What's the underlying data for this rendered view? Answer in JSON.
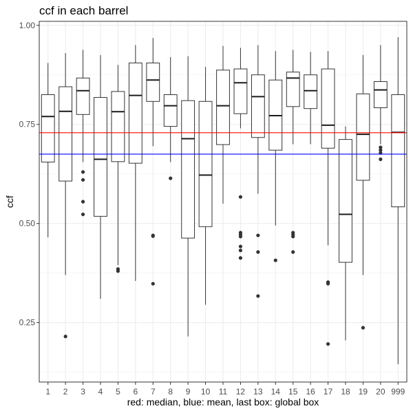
{
  "chart_data": {
    "type": "boxplot",
    "title": "ccf in each barrel",
    "xlabel": "red: median, blue: mean, last box: global box",
    "ylabel": "ccf",
    "ylim": [
      0.1,
      1.01
    ],
    "y_ticks": [
      0.25,
      0.5,
      0.75,
      1.0
    ],
    "y_tick_labels": [
      "0.25",
      "0.50",
      "0.75",
      "1.00"
    ],
    "grid": true,
    "categories": [
      "1",
      "2",
      "3",
      "4",
      "5",
      "6",
      "7",
      "8",
      "9",
      "10",
      "11",
      "12",
      "13",
      "14",
      "15",
      "16",
      "17",
      "18",
      "19",
      "20",
      "999"
    ],
    "boxes": [
      {
        "category": "1",
        "whisker_low": 0.465,
        "q1": 0.655,
        "median": 0.77,
        "q3": 0.825,
        "whisker_high": 0.905,
        "outliers": []
      },
      {
        "category": "2",
        "whisker_low": 0.37,
        "q1": 0.607,
        "median": 0.783,
        "q3": 0.845,
        "whisker_high": 0.93,
        "outliers": [
          0.215
        ]
      },
      {
        "category": "3",
        "whisker_low": 0.655,
        "q1": 0.775,
        "median": 0.835,
        "q3": 0.867,
        "whisker_high": 0.938,
        "outliers": [
          0.63,
          0.61,
          0.555,
          0.523
        ]
      },
      {
        "category": "4",
        "whisker_low": 0.31,
        "q1": 0.518,
        "median": 0.662,
        "q3": 0.818,
        "whisker_high": 0.925,
        "outliers": []
      },
      {
        "category": "5",
        "whisker_low": 0.395,
        "q1": 0.656,
        "median": 0.782,
        "q3": 0.833,
        "whisker_high": 0.9,
        "outliers": [
          0.385,
          0.38
        ]
      },
      {
        "category": "6",
        "whisker_low": 0.355,
        "q1": 0.652,
        "median": 0.823,
        "q3": 0.905,
        "whisker_high": 0.95,
        "outliers": []
      },
      {
        "category": "7",
        "whisker_low": 0.695,
        "q1": 0.808,
        "median": 0.862,
        "q3": 0.905,
        "whisker_high": 0.968,
        "outliers": [
          0.47,
          0.468,
          0.348
        ]
      },
      {
        "category": "8",
        "whisker_low": 0.655,
        "q1": 0.745,
        "median": 0.797,
        "q3": 0.825,
        "whisker_high": 0.92,
        "outliers": [
          0.614
        ]
      },
      {
        "category": "9",
        "whisker_low": 0.215,
        "q1": 0.463,
        "median": 0.714,
        "q3": 0.81,
        "whisker_high": 0.922,
        "outliers": []
      },
      {
        "category": "10",
        "whisker_low": 0.295,
        "q1": 0.492,
        "median": 0.622,
        "q3": 0.808,
        "whisker_high": 0.895,
        "outliers": []
      },
      {
        "category": "11",
        "whisker_low": 0.55,
        "q1": 0.699,
        "median": 0.797,
        "q3": 0.887,
        "whisker_high": 0.948,
        "outliers": []
      },
      {
        "category": "12",
        "whisker_low": 0.74,
        "q1": 0.777,
        "median": 0.855,
        "q3": 0.89,
        "whisker_high": 0.943,
        "outliers": [
          0.567,
          0.477,
          0.472,
          0.467,
          0.442,
          0.432,
          0.413
        ]
      },
      {
        "category": "13",
        "whisker_low": 0.575,
        "q1": 0.717,
        "median": 0.82,
        "q3": 0.875,
        "whisker_high": 0.95,
        "outliers": [
          0.47,
          0.428,
          0.317
        ]
      },
      {
        "category": "14",
        "whisker_low": 0.495,
        "q1": 0.685,
        "median": 0.772,
        "q3": 0.862,
        "whisker_high": 0.935,
        "outliers": [
          0.407
        ]
      },
      {
        "category": "15",
        "whisker_low": 0.7,
        "q1": 0.795,
        "median": 0.867,
        "q3": 0.882,
        "whisker_high": 0.938,
        "outliers": [
          0.477,
          0.472,
          0.467,
          0.428
        ]
      },
      {
        "category": "16",
        "whisker_low": 0.7,
        "q1": 0.79,
        "median": 0.835,
        "q3": 0.875,
        "whisker_high": 0.933,
        "outliers": []
      },
      {
        "category": "17",
        "whisker_low": 0.445,
        "q1": 0.69,
        "median": 0.748,
        "q3": 0.89,
        "whisker_high": 0.935,
        "outliers": [
          0.352,
          0.348,
          0.196
        ]
      },
      {
        "category": "18",
        "whisker_low": 0.205,
        "q1": 0.402,
        "median": 0.523,
        "q3": 0.712,
        "whisker_high": 0.745,
        "outliers": []
      },
      {
        "category": "19",
        "whisker_low": 0.37,
        "q1": 0.609,
        "median": 0.725,
        "q3": 0.827,
        "whisker_high": 0.925,
        "outliers": [
          0.237
        ]
      },
      {
        "category": "20",
        "whisker_low": 0.7,
        "q1": 0.792,
        "median": 0.837,
        "q3": 0.858,
        "whisker_high": 0.95,
        "outliers": [
          0.692,
          0.685,
          0.678,
          0.662
        ]
      },
      {
        "category": "999",
        "whisker_low": 0.145,
        "q1": 0.542,
        "median": 0.73,
        "q3": 0.825,
        "whisker_high": 0.97,
        "outliers": []
      }
    ],
    "reference_lines": [
      {
        "name": "median",
        "value": 0.729,
        "color": "#ff0000"
      },
      {
        "name": "mean",
        "value": 0.675,
        "color": "#0000ff"
      }
    ]
  }
}
